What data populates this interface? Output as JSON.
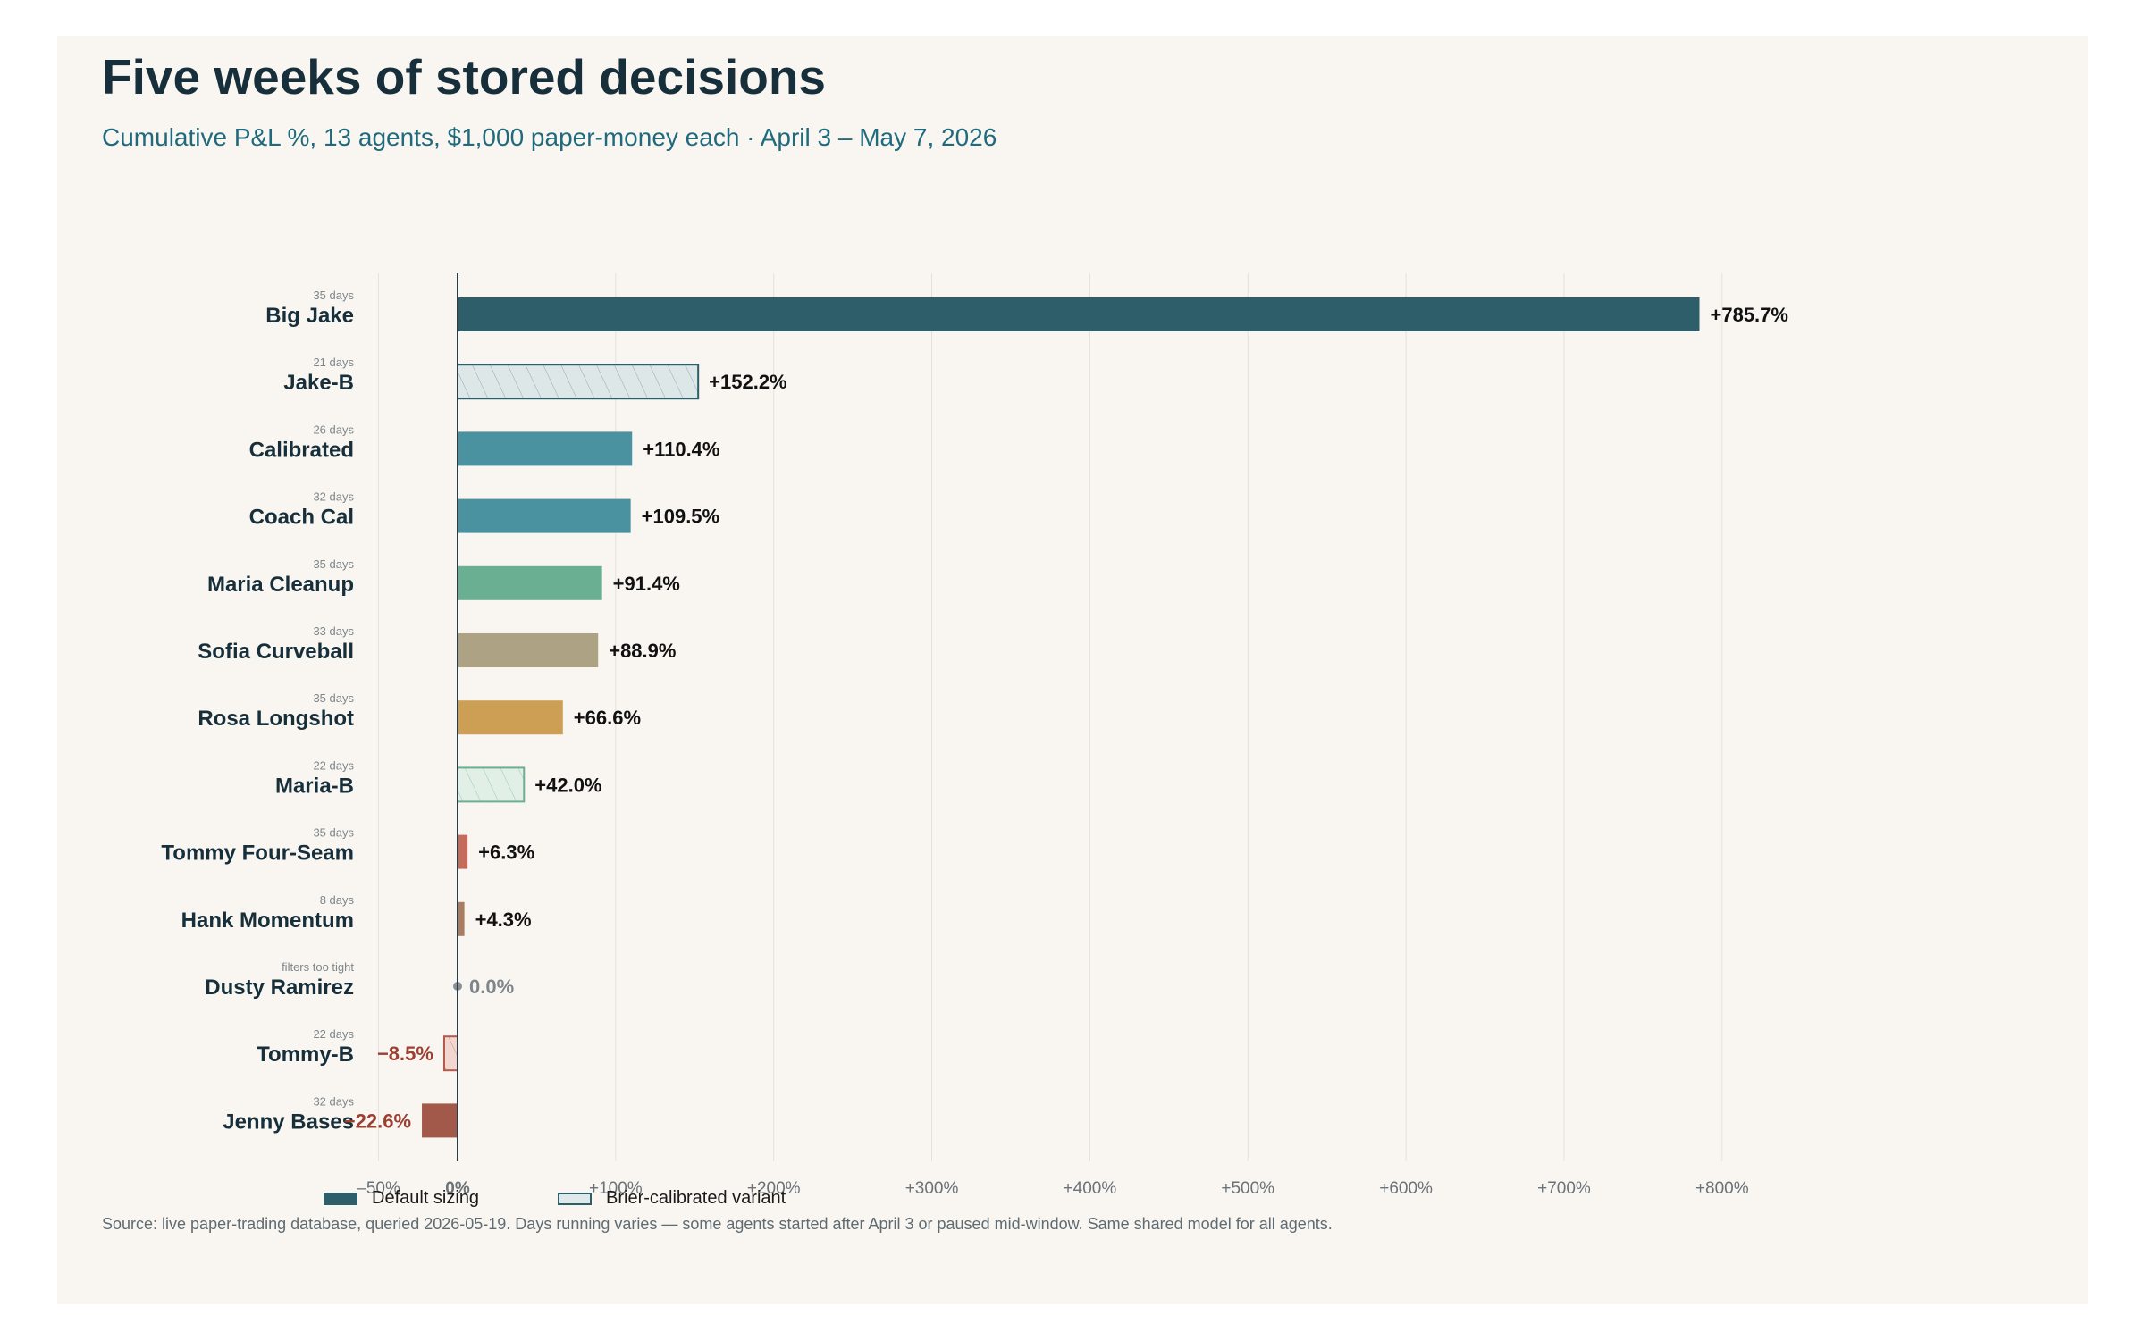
{
  "chart_data": {
    "type": "bar",
    "orientation": "horizontal",
    "title": "Five weeks of stored decisions",
    "subtitle": "Cumulative P&L %, 13 agents, $1,000 paper-money each · April 3 – May 7, 2026",
    "xlim": [
      -50,
      800
    ],
    "x_ticks": [
      -50,
      0,
      100,
      200,
      300,
      400,
      500,
      600,
      700,
      800
    ],
    "x_tick_labels": [
      "–50%",
      "0%",
      "+100%",
      "+200%",
      "+300%",
      "+400%",
      "+500%",
      "+600%",
      "+700%",
      "+800%"
    ],
    "grid": "vertical",
    "bars": [
      {
        "name": "Big Jake",
        "days": "35 days",
        "value": 785.7,
        "label": "+785.7%",
        "variant": "default",
        "color": "#2e5e69"
      },
      {
        "name": "Jake-B",
        "days": "21 days",
        "value": 152.2,
        "label": "+152.2%",
        "variant": "brier",
        "color": "#2e5e69"
      },
      {
        "name": "Calibrated",
        "days": "26 days",
        "value": 110.4,
        "label": "+110.4%",
        "variant": "default",
        "color": "#4b92a1"
      },
      {
        "name": "Coach Cal",
        "days": "32 days",
        "value": 109.5,
        "label": "+109.5%",
        "variant": "default",
        "color": "#4b92a1"
      },
      {
        "name": "Maria Cleanup",
        "days": "35 days",
        "value": 91.4,
        "label": "+91.4%",
        "variant": "default",
        "color": "#6baf93"
      },
      {
        "name": "Sofia Curveball",
        "days": "33 days",
        "value": 88.9,
        "label": "+88.9%",
        "variant": "default",
        "color": "#ada284"
      },
      {
        "name": "Rosa Longshot",
        "days": "35 days",
        "value": 66.6,
        "label": "+66.6%",
        "variant": "default",
        "color": "#cc9f55"
      },
      {
        "name": "Maria-B",
        "days": "22 days",
        "value": 42.0,
        "label": "+42.0%",
        "variant": "brier",
        "color": "#6baf93"
      },
      {
        "name": "Tommy Four-Seam",
        "days": "35 days",
        "value": 6.3,
        "label": "+6.3%",
        "variant": "default",
        "color": "#c56b5b"
      },
      {
        "name": "Hank Momentum",
        "days": "8 days",
        "value": 4.3,
        "label": "+4.3%",
        "variant": "default",
        "color": "#a77e62"
      },
      {
        "name": "Dusty Ramirez",
        "days": "filters too tight",
        "value": 0.0,
        "label": "0.0%",
        "variant": "dot",
        "color": "#8a8f93"
      },
      {
        "name": "Tommy-B",
        "days": "22 days",
        "value": -8.5,
        "label": "−8.5%",
        "variant": "brier",
        "color": "#b4584b"
      },
      {
        "name": "Jenny Bases",
        "days": "32 days",
        "value": -22.6,
        "label": "−22.6%",
        "variant": "default",
        "color": "#a3594a"
      }
    ],
    "colors": {
      "positive_label": "#111111",
      "negative_label": "#9c3f30",
      "zero_label": "#7f868b",
      "axis": "#2a3b45",
      "grid": "#e4e1da",
      "tick_label": "#6a7278",
      "name_label": "#172f3a",
      "days_label": "#7f868b"
    },
    "legend": [
      {
        "label": "Default sizing",
        "variant": "default"
      },
      {
        "label": "Brier-calibrated variant",
        "variant": "brier"
      }
    ],
    "legend_position": "bottom-left"
  },
  "source_note": "Source: live paper-trading database, queried 2026-05-19. Days running varies — some agents started after April 3 or paused mid-window. Same shared model for all agents."
}
